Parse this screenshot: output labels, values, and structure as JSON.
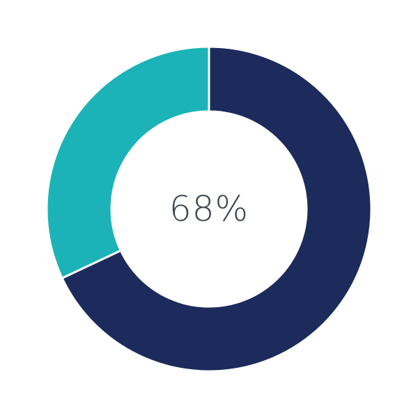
{
  "chart_data": {
    "type": "pie",
    "variant": "donut",
    "center_label": "68%",
    "slices": [
      {
        "value": 68,
        "color": "#1c2b5b"
      },
      {
        "value": 32,
        "color": "#1cb3b8"
      }
    ],
    "separator_color": "#ffffff"
  }
}
